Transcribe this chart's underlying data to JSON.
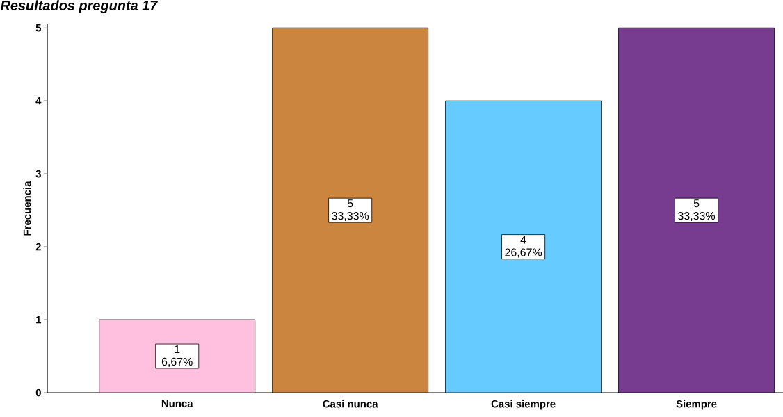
{
  "chart_data": {
    "type": "bar",
    "title": "Resultados pregunta 17",
    "ylabel": "Frecuencia",
    "categories": [
      "Nunca",
      "Casi nunca",
      "Casi siempre",
      "Siempre"
    ],
    "values": [
      1,
      5,
      4,
      5
    ],
    "colors": [
      "#ffc0e0",
      "#cc853f",
      "#66ccff",
      "#773b8f"
    ],
    "value_labels": [
      "1 6,67%",
      "5 33,33%",
      "4 26,67%",
      "5 33,33%"
    ],
    "ylim": [
      0,
      5.05
    ],
    "yticks": [
      0,
      1,
      2,
      3,
      4,
      5
    ]
  }
}
